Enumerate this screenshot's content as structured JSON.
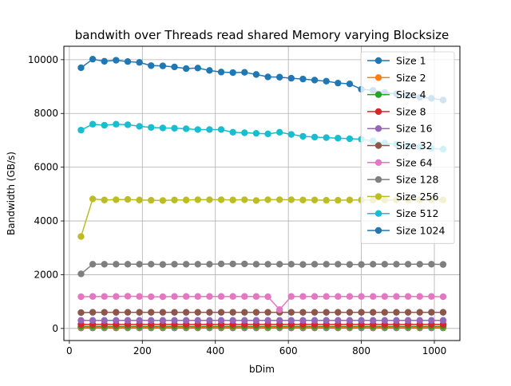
{
  "chart_data": {
    "type": "line",
    "title": "bandwith over Threads read shared Memory varying Blocksize",
    "xlabel": "bDim",
    "ylabel": "Bandwidth (GB/s)",
    "xlim": [
      -15,
      1070
    ],
    "ylim": [
      -450,
      10500
    ],
    "xticks": [
      0,
      200,
      400,
      600,
      800,
      1000
    ],
    "yticks": [
      0,
      2000,
      4000,
      6000,
      8000,
      10000
    ],
    "grid": true,
    "legend_position": "upper-right",
    "x": [
      32,
      64,
      96,
      128,
      160,
      192,
      224,
      256,
      288,
      320,
      352,
      384,
      416,
      448,
      480,
      512,
      544,
      576,
      608,
      640,
      672,
      704,
      736,
      768,
      800,
      832,
      864,
      896,
      928,
      960,
      992,
      1024
    ],
    "series": [
      {
        "name": "Size 1",
        "color": "#1f77b4",
        "values": [
          20,
          20,
          20,
          20,
          20,
          20,
          20,
          20,
          20,
          20,
          20,
          20,
          20,
          20,
          20,
          20,
          20,
          20,
          20,
          20,
          20,
          20,
          20,
          20,
          20,
          20,
          20,
          20,
          20,
          20,
          20,
          20
        ]
      },
      {
        "name": "Size 2",
        "color": "#ff7f0e",
        "values": [
          40,
          40,
          40,
          40,
          40,
          40,
          40,
          40,
          40,
          40,
          40,
          40,
          40,
          40,
          40,
          40,
          40,
          40,
          40,
          40,
          40,
          40,
          40,
          40,
          40,
          40,
          40,
          40,
          40,
          40,
          40,
          40
        ]
      },
      {
        "name": "Size 4",
        "color": "#2ca02c",
        "values": [
          75,
          75,
          75,
          75,
          75,
          75,
          75,
          75,
          75,
          75,
          75,
          75,
          75,
          75,
          75,
          75,
          75,
          75,
          75,
          75,
          75,
          75,
          75,
          75,
          75,
          75,
          75,
          75,
          75,
          75,
          75,
          75
        ]
      },
      {
        "name": "Size 8",
        "color": "#d62728",
        "values": [
          150,
          150,
          150,
          150,
          150,
          150,
          150,
          150,
          150,
          150,
          150,
          150,
          150,
          150,
          150,
          150,
          150,
          150,
          150,
          150,
          150,
          150,
          150,
          150,
          150,
          150,
          150,
          150,
          150,
          150,
          150,
          150
        ]
      },
      {
        "name": "Size 16",
        "color": "#9467bd",
        "values": [
          300,
          300,
          300,
          300,
          300,
          300,
          300,
          300,
          300,
          300,
          300,
          300,
          300,
          300,
          300,
          300,
          300,
          300,
          300,
          300,
          300,
          300,
          300,
          300,
          300,
          300,
          300,
          300,
          300,
          300,
          300,
          300
        ]
      },
      {
        "name": "Size 32",
        "color": "#8c564b",
        "values": [
          590,
          600,
          600,
          600,
          600,
          600,
          600,
          600,
          600,
          600,
          600,
          600,
          600,
          600,
          600,
          600,
          600,
          600,
          600,
          600,
          600,
          600,
          600,
          600,
          600,
          600,
          600,
          600,
          600,
          600,
          600,
          600
        ]
      },
      {
        "name": "Size 64",
        "color": "#e377c2",
        "values": [
          1180,
          1190,
          1190,
          1190,
          1200,
          1190,
          1180,
          1180,
          1190,
          1190,
          1190,
          1190,
          1190,
          1190,
          1190,
          1190,
          1180,
          700,
          1190,
          1190,
          1190,
          1190,
          1190,
          1190,
          1190,
          1190,
          1190,
          1190,
          1190,
          1190,
          1190,
          1180
        ]
      },
      {
        "name": "Size 128",
        "color": "#7f7f7f",
        "values": [
          2030,
          2390,
          2390,
          2390,
          2390,
          2390,
          2390,
          2380,
          2390,
          2390,
          2390,
          2390,
          2400,
          2400,
          2400,
          2390,
          2390,
          2390,
          2390,
          2380,
          2390,
          2390,
          2390,
          2380,
          2380,
          2390,
          2390,
          2390,
          2390,
          2390,
          2390,
          2380
        ]
      },
      {
        "name": "Size 256",
        "color": "#bcbd22",
        "values": [
          3420,
          4820,
          4780,
          4790,
          4800,
          4780,
          4770,
          4760,
          4780,
          4780,
          4790,
          4790,
          4790,
          4780,
          4790,
          4760,
          4790,
          4790,
          4790,
          4780,
          4780,
          4770,
          4770,
          4780,
          4780,
          4780,
          4780,
          4780,
          4780,
          4780,
          4780,
          4780
        ]
      },
      {
        "name": "Size 512",
        "color": "#17becf",
        "values": [
          7380,
          7600,
          7560,
          7600,
          7580,
          7520,
          7480,
          7460,
          7450,
          7430,
          7400,
          7400,
          7400,
          7300,
          7280,
          7260,
          7240,
          7300,
          7220,
          7150,
          7120,
          7100,
          7080,
          7060,
          7040,
          6980,
          6900,
          6850,
          6800,
          6750,
          6700,
          6670
        ]
      },
      {
        "name": "Size 1024",
        "color": "#1f77b4",
        "values": [
          9700,
          10020,
          9940,
          9980,
          9930,
          9900,
          9780,
          9770,
          9730,
          9670,
          9690,
          9600,
          9540,
          9520,
          9530,
          9450,
          9360,
          9350,
          9310,
          9280,
          9240,
          9200,
          9130,
          9100,
          8900,
          8860,
          8780,
          8730,
          8660,
          8600,
          8560,
          8500
        ]
      }
    ]
  }
}
